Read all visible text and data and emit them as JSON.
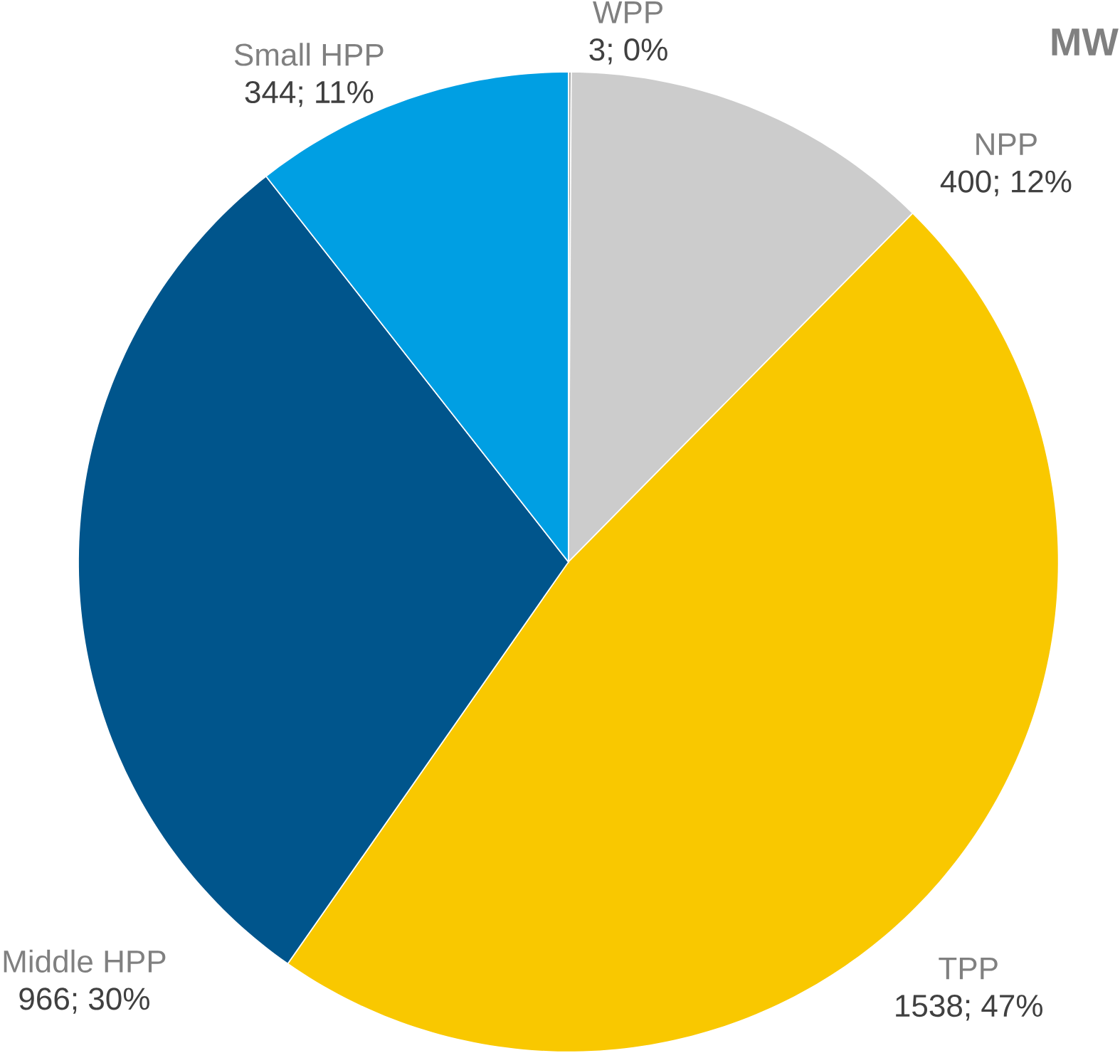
{
  "chart_data": {
    "type": "pie",
    "title": "MW",
    "categories": [
      "WPP",
      "NPP",
      "TPP",
      "Middle HPP",
      "Small HPP"
    ],
    "values": [
      3,
      400,
      1538,
      966,
      344
    ],
    "value_labels": [
      "3; 0%",
      "400; 12%",
      "1538; 47%",
      "966; 30%",
      "344; 11%"
    ],
    "colors": [
      "#a6a6a6",
      "#cccccc",
      "#f9c800",
      "#00558c",
      "#009fe3"
    ]
  }
}
